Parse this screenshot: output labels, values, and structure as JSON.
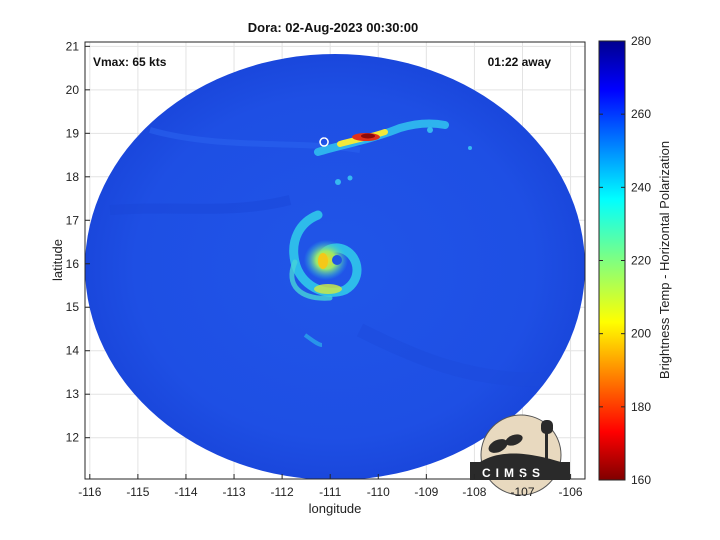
{
  "title": "Dora: 02-Aug-2023 00:30:00",
  "vmax_label": "Vmax: 65 kts",
  "time_away_label": "01:22 away",
  "axes": {
    "xlabel": "longitude",
    "ylabel": "latitude",
    "xlim": [
      -116.1,
      -105.7
    ],
    "ylim": [
      11.05,
      21.1
    ],
    "xticks": [
      -116,
      -115,
      -114,
      -113,
      -112,
      -111,
      -110,
      -109,
      -108,
      -107,
      -106
    ],
    "yticks": [
      12,
      13,
      14,
      15,
      16,
      17,
      18,
      19,
      20,
      21
    ],
    "grid": true
  },
  "colorbar": {
    "label": "Brightness Temp - Horizontal Polarization",
    "min": 160,
    "max": 280,
    "ticks": [
      160,
      180,
      200,
      220,
      240,
      260,
      280
    ],
    "colormap": "jet"
  },
  "storm": {
    "name": "Dora",
    "center_lon": -110.9,
    "center_lat": 16.05
  },
  "logo": {
    "text": "CIMSS"
  },
  "colors": {
    "background_swath": "#1f4fe6",
    "eyewall_core": "#f5e21a",
    "hot_band": "#c8141e"
  }
}
